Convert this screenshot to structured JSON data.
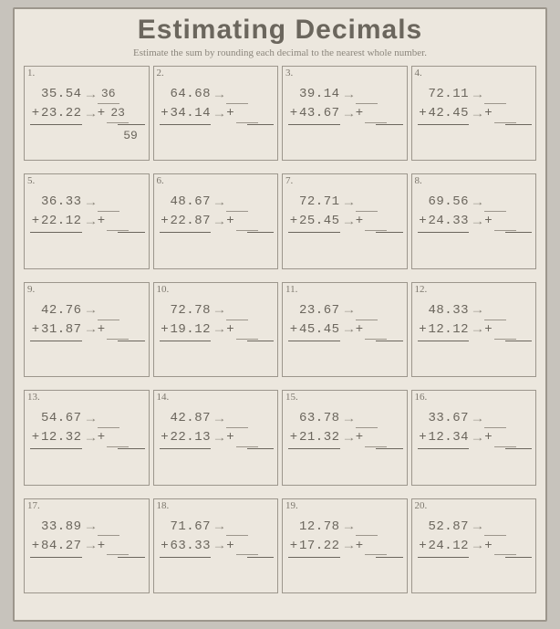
{
  "title": "Estimating Decimals",
  "subtitle": "Estimate the sum by rounding each decimal to the nearest whole number.",
  "colors": {
    "page_bg": "#c7c3bc",
    "sheet_bg": "#ece7de",
    "border": "#9c968c",
    "text": "#6b665d",
    "muted": "#8b867c"
  },
  "arrow_glyph": "→",
  "plus_glyph": "+",
  "problems": [
    {
      "n": "1.",
      "a": "35.54",
      "b": "23.22",
      "ra": "36",
      "rb": "23",
      "sum": "59"
    },
    {
      "n": "2.",
      "a": "64.68",
      "b": "34.14",
      "ra": "",
      "rb": "",
      "sum": ""
    },
    {
      "n": "3.",
      "a": "39.14",
      "b": "43.67",
      "ra": "",
      "rb": "",
      "sum": ""
    },
    {
      "n": "4.",
      "a": "72.11",
      "b": "42.45",
      "ra": "",
      "rb": "",
      "sum": ""
    },
    {
      "n": "5.",
      "a": "36.33",
      "b": "22.12",
      "ra": "",
      "rb": "",
      "sum": ""
    },
    {
      "n": "6.",
      "a": "48.67",
      "b": "22.87",
      "ra": "",
      "rb": "",
      "sum": ""
    },
    {
      "n": "7.",
      "a": "72.71",
      "b": "25.45",
      "ra": "",
      "rb": "",
      "sum": ""
    },
    {
      "n": "8.",
      "a": "69.56",
      "b": "24.33",
      "ra": "",
      "rb": "",
      "sum": ""
    },
    {
      "n": "9.",
      "a": "42.76",
      "b": "31.87",
      "ra": "",
      "rb": "",
      "sum": ""
    },
    {
      "n": "10.",
      "a": "72.78",
      "b": "19.12",
      "ra": "",
      "rb": "",
      "sum": ""
    },
    {
      "n": "11.",
      "a": "23.67",
      "b": "45.45",
      "ra": "",
      "rb": "",
      "sum": ""
    },
    {
      "n": "12.",
      "a": "48.33",
      "b": "12.12",
      "ra": "",
      "rb": "",
      "sum": ""
    },
    {
      "n": "13.",
      "a": "54.67",
      "b": "12.32",
      "ra": "",
      "rb": "",
      "sum": ""
    },
    {
      "n": "14.",
      "a": "42.87",
      "b": "22.13",
      "ra": "",
      "rb": "",
      "sum": ""
    },
    {
      "n": "15.",
      "a": "63.78",
      "b": "21.32",
      "ra": "",
      "rb": "",
      "sum": ""
    },
    {
      "n": "16.",
      "a": "33.67",
      "b": "12.34",
      "ra": "",
      "rb": "",
      "sum": ""
    },
    {
      "n": "17.",
      "a": "33.89",
      "b": "84.27",
      "ra": "",
      "rb": "",
      "sum": ""
    },
    {
      "n": "18.",
      "a": "71.67",
      "b": "63.33",
      "ra": "",
      "rb": "",
      "sum": ""
    },
    {
      "n": "19.",
      "a": "12.78",
      "b": "17.22",
      "ra": "",
      "rb": "",
      "sum": ""
    },
    {
      "n": "20.",
      "a": "52.87",
      "b": "24.12",
      "ra": "",
      "rb": "",
      "sum": ""
    }
  ]
}
